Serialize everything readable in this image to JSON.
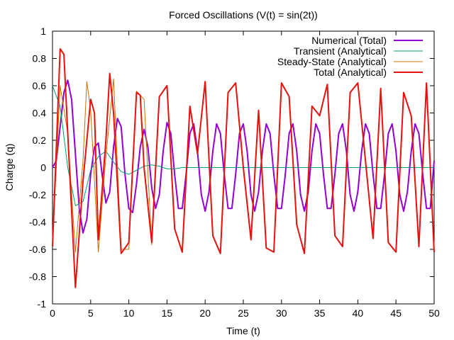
{
  "chart_data": {
    "type": "line",
    "title": "Forced Oscillations (V(t) = sin(2t))",
    "xlabel": "Time (t)",
    "ylabel": "Charge (q)",
    "xlim": [
      0,
      50
    ],
    "ylim": [
      -1,
      1
    ],
    "xticks": [
      0,
      5,
      10,
      15,
      20,
      25,
      30,
      35,
      40,
      45,
      50
    ],
    "yticks": [
      -1,
      -0.8,
      -0.6,
      -0.4,
      -0.2,
      0,
      0.2,
      0.4,
      0.6,
      0.8,
      1
    ],
    "grid": false,
    "legend_position": "top-right",
    "series": [
      {
        "name": "Numerical (Total)",
        "color": "#9400d3",
        "points": [
          [
            0,
            0.0
          ],
          [
            0.5,
            0.05
          ],
          [
            1,
            0.3
          ],
          [
            1.5,
            0.55
          ],
          [
            2,
            0.64
          ],
          [
            2.5,
            0.5
          ],
          [
            3,
            0.1
          ],
          [
            3.5,
            -0.3
          ],
          [
            4,
            -0.48
          ],
          [
            4.5,
            -0.38
          ],
          [
            5,
            -0.05
          ],
          [
            5.5,
            0.15
          ],
          [
            6,
            0.18
          ],
          [
            6.5,
            -0.05
          ],
          [
            7,
            -0.26
          ],
          [
            7.5,
            -0.18
          ],
          [
            8,
            0.15
          ],
          [
            8.5,
            0.36
          ],
          [
            9,
            0.3
          ],
          [
            9.5,
            -0.05
          ],
          [
            10,
            -0.3
          ],
          [
            10.5,
            -0.33
          ],
          [
            11,
            -0.12
          ],
          [
            11.5,
            0.15
          ],
          [
            12,
            0.28
          ],
          [
            12.5,
            0.15
          ],
          [
            13,
            -0.15
          ],
          [
            13.5,
            -0.3
          ],
          [
            14,
            -0.2
          ],
          [
            14.5,
            0.12
          ],
          [
            15,
            0.33
          ],
          [
            15.5,
            0.25
          ],
          [
            16,
            -0.05
          ],
          [
            16.5,
            -0.3
          ],
          [
            17,
            -0.3
          ],
          [
            17.5,
            -0.05
          ],
          [
            18,
            0.25
          ],
          [
            18.5,
            0.32
          ],
          [
            19,
            0.12
          ],
          [
            19.5,
            -0.2
          ],
          [
            20,
            -0.32
          ],
          [
            20.5,
            -0.18
          ],
          [
            21,
            0.12
          ],
          [
            21.5,
            0.32
          ],
          [
            22,
            0.25
          ],
          [
            22.5,
            -0.05
          ],
          [
            23,
            -0.3
          ],
          [
            23.5,
            -0.3
          ],
          [
            24,
            -0.05
          ],
          [
            24.5,
            0.25
          ],
          [
            25,
            0.32
          ],
          [
            25.5,
            0.12
          ],
          [
            26,
            -0.2
          ],
          [
            26.5,
            -0.32
          ],
          [
            27,
            -0.18
          ],
          [
            27.5,
            0.12
          ],
          [
            28,
            0.32
          ],
          [
            28.5,
            0.25
          ],
          [
            29,
            -0.05
          ],
          [
            29.5,
            -0.3
          ],
          [
            30,
            -0.3
          ],
          [
            30.5,
            -0.05
          ],
          [
            31,
            0.25
          ],
          [
            31.5,
            0.32
          ],
          [
            32,
            0.12
          ],
          [
            32.5,
            -0.2
          ],
          [
            33,
            -0.32
          ],
          [
            33.5,
            -0.18
          ],
          [
            34,
            0.12
          ],
          [
            34.5,
            0.32
          ],
          [
            35,
            0.25
          ],
          [
            35.5,
            -0.05
          ],
          [
            36,
            -0.3
          ],
          [
            36.5,
            -0.3
          ],
          [
            37,
            -0.05
          ],
          [
            37.5,
            0.25
          ],
          [
            38,
            0.32
          ],
          [
            38.5,
            0.12
          ],
          [
            39,
            -0.2
          ],
          [
            39.5,
            -0.32
          ],
          [
            40,
            -0.18
          ],
          [
            40.5,
            0.12
          ],
          [
            41,
            0.32
          ],
          [
            41.5,
            0.25
          ],
          [
            42,
            -0.05
          ],
          [
            42.5,
            -0.3
          ],
          [
            43,
            -0.3
          ],
          [
            43.5,
            -0.05
          ],
          [
            44,
            0.25
          ],
          [
            44.5,
            0.32
          ],
          [
            45,
            0.12
          ],
          [
            45.5,
            -0.2
          ],
          [
            46,
            -0.32
          ],
          [
            46.5,
            -0.18
          ],
          [
            47,
            0.12
          ],
          [
            47.5,
            0.32
          ],
          [
            48,
            0.25
          ],
          [
            48.5,
            -0.05
          ],
          [
            49,
            -0.3
          ],
          [
            49.5,
            -0.3
          ],
          [
            50,
            0.05
          ]
        ]
      },
      {
        "name": "Transient (Analytical)",
        "color": "#009e73",
        "points": [
          [
            0,
            0.6
          ],
          [
            1,
            0.45
          ],
          [
            2,
            0.0
          ],
          [
            3,
            -0.28
          ],
          [
            4,
            -0.25
          ],
          [
            5,
            -0.02
          ],
          [
            6,
            0.08
          ],
          [
            7,
            0.12
          ],
          [
            8,
            0.04
          ],
          [
            9,
            -0.03
          ],
          [
            10,
            -0.05
          ],
          [
            11,
            -0.02
          ],
          [
            12,
            0.01
          ],
          [
            13,
            0.02
          ],
          [
            14,
            0.01
          ],
          [
            15,
            -0.01
          ],
          [
            16,
            -0.01
          ],
          [
            17,
            0.0
          ],
          [
            18,
            0.0
          ],
          [
            20,
            0.0
          ],
          [
            25,
            0.0
          ],
          [
            30,
            0.0
          ],
          [
            35,
            0.0
          ],
          [
            40,
            0.0
          ],
          [
            45,
            0.0
          ],
          [
            50,
            0.0
          ]
        ]
      },
      {
        "name": "Steady-State (Analytical)",
        "color": "#c87000",
        "points": [
          [
            0,
            -0.58
          ],
          [
            1,
            0.6
          ],
          [
            2,
            0.25
          ],
          [
            3,
            -0.62
          ],
          [
            4,
            0.05
          ],
          [
            4.5,
            0.63
          ],
          [
            5,
            0.42
          ],
          [
            6,
            -0.62
          ],
          [
            7,
            0.08
          ],
          [
            8,
            0.65
          ],
          [
            9,
            -0.6
          ],
          [
            10,
            -0.6
          ],
          [
            11,
            0.56
          ],
          [
            12,
            0.5
          ],
          [
            13,
            -0.57
          ]
        ]
      },
      {
        "name": "Total (Analytical)",
        "color": "#e8100c",
        "points": [
          [
            0,
            -0.58
          ],
          [
            1,
            0.87
          ],
          [
            1.5,
            0.83
          ],
          [
            2,
            0.25
          ],
          [
            3,
            -0.88
          ],
          [
            4,
            -0.1
          ],
          [
            5,
            0.5
          ],
          [
            5.5,
            0.4
          ],
          [
            6,
            -0.53
          ],
          [
            7,
            0.2
          ],
          [
            7.5,
            0.69
          ],
          [
            8,
            0.4
          ],
          [
            9,
            -0.63
          ],
          [
            10,
            -0.55
          ],
          [
            11,
            0.55
          ],
          [
            11.5,
            0.53
          ],
          [
            12,
            0.0
          ],
          [
            13,
            -0.55
          ],
          [
            14,
            0.52
          ],
          [
            15,
            0.6
          ],
          [
            16,
            -0.45
          ],
          [
            17,
            -0.62
          ],
          [
            18,
            0.45
          ],
          [
            19,
            0.1
          ],
          [
            20,
            0.63
          ],
          [
            21,
            -0.5
          ],
          [
            22,
            -0.63
          ],
          [
            23,
            0.55
          ],
          [
            24,
            0.62
          ],
          [
            25,
            0.0
          ],
          [
            26,
            -0.53
          ],
          [
            27,
            0.42
          ],
          [
            28,
            -0.59
          ],
          [
            29,
            -0.62
          ],
          [
            30,
            0.62
          ],
          [
            31,
            0.52
          ],
          [
            32,
            -0.42
          ],
          [
            33,
            -0.63
          ],
          [
            34,
            0.45
          ],
          [
            35,
            0.38
          ],
          [
            36,
            0.61
          ],
          [
            37,
            -0.5
          ],
          [
            38,
            -0.58
          ],
          [
            39,
            0.55
          ],
          [
            40,
            0.62
          ],
          [
            41,
            0.05
          ],
          [
            42,
            -0.52
          ],
          [
            43,
            0.58
          ],
          [
            44,
            -0.55
          ],
          [
            45,
            -0.62
          ],
          [
            46,
            0.55
          ],
          [
            47,
            0.38
          ],
          [
            48,
            -0.58
          ],
          [
            49,
            0.62
          ],
          [
            50,
            -0.62
          ]
        ]
      }
    ]
  }
}
